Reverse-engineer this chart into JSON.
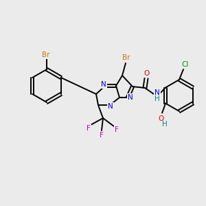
{
  "background_color": "#ebebeb",
  "atom_colors": {
    "Br": "#cc7700",
    "N": "#0000ff",
    "O": "#ff0000",
    "F": "#cc00cc",
    "Cl": "#009900",
    "H": "#008888",
    "C": "#000000"
  },
  "figsize": [
    3.0,
    3.0
  ],
  "dpi": 100
}
